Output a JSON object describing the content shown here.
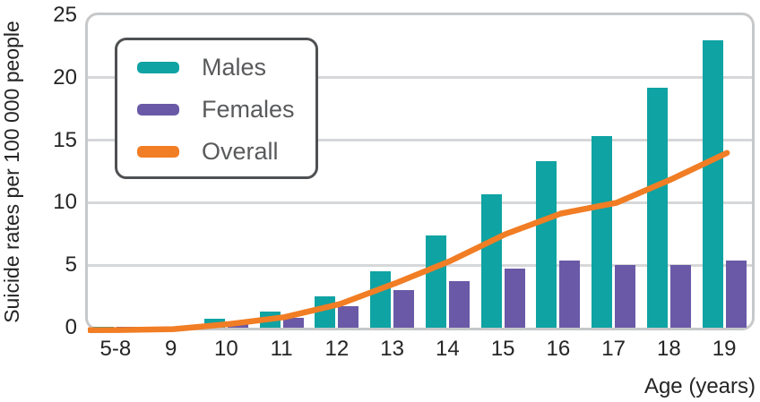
{
  "y_axis": {
    "title": "Suicide rates per 100 000 people",
    "ticks": [
      0,
      5,
      10,
      15,
      20,
      25
    ],
    "max": 25,
    "gridlines_at": [
      5,
      10,
      15,
      20
    ]
  },
  "x_axis": {
    "title": "Age (years)"
  },
  "legend": {
    "items": [
      {
        "label": "Males",
        "color": "#0fa3a3",
        "swatch": "teal-swatch"
      },
      {
        "label": "Females",
        "color": "#6a59a7",
        "swatch": "purple-swatch"
      },
      {
        "label": "Overall",
        "color": "#f17d24",
        "swatch": "orange-swatch"
      }
    ]
  },
  "chart_data": {
    "type": "bar",
    "title": "",
    "xlabel": "Age (years)",
    "ylabel": "Suicide rates per 100 000 people",
    "ylim": [
      0,
      25
    ],
    "grid": true,
    "legend_position": "upper-left",
    "categories": [
      "5-8",
      "9",
      "10",
      "11",
      "12",
      "13",
      "14",
      "15",
      "16",
      "17",
      "18",
      "19"
    ],
    "series": [
      {
        "name": "Males",
        "type": "bar",
        "color": "#0fa3a3",
        "values": [
          0.05,
          0.1,
          0.7,
          1.3,
          2.5,
          4.5,
          7.4,
          10.7,
          13.3,
          15.3,
          19.2,
          23.0
        ]
      },
      {
        "name": "Females",
        "type": "bar",
        "color": "#6a59a7",
        "values": [
          0.02,
          0.05,
          0.3,
          0.8,
          1.7,
          3.0,
          3.7,
          4.7,
          5.4,
          5.05,
          5.0,
          5.4
        ]
      },
      {
        "name": "Overall",
        "type": "line",
        "color": "#f17d24",
        "values": [
          0.03,
          0.1,
          0.5,
          1.05,
          2.1,
          3.75,
          5.55,
          7.7,
          9.35,
          10.2,
          12.1,
          14.2
        ]
      }
    ]
  },
  "colors": {
    "males": "#0fa3a3",
    "females": "#6a59a7",
    "overall": "#f17d24",
    "gridline": "#d6d7d9",
    "plot_border": "#c6c8ca",
    "axis_text": "#262424",
    "legend_text": "#595a5c",
    "legend_border": "#4f5052"
  }
}
